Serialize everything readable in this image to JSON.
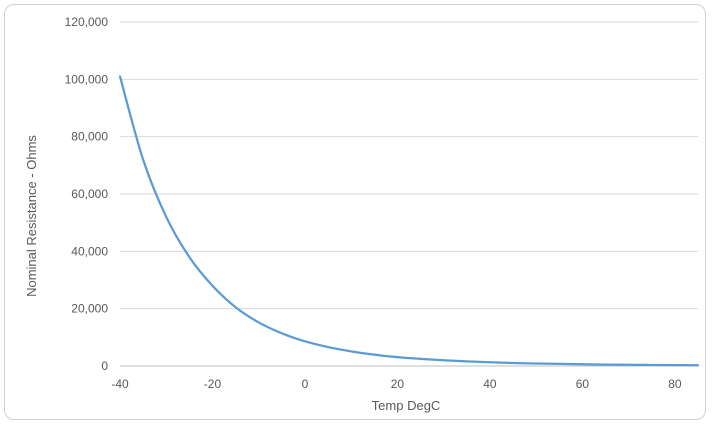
{
  "chart_data": {
    "type": "line",
    "title": "",
    "xlabel": "Temp DegC",
    "ylabel": "Nominal Resistance - Ohms",
    "xlim": [
      -40,
      85
    ],
    "ylim": [
      0,
      120000
    ],
    "x_ticks": [
      -40,
      -20,
      0,
      20,
      40,
      60,
      80
    ],
    "x_tick_labels": [
      "-40",
      "-20",
      "0",
      "20",
      "40",
      "60",
      "80"
    ],
    "y_ticks": [
      0,
      20000,
      40000,
      60000,
      80000,
      100000,
      120000
    ],
    "y_tick_labels": [
      "0",
      "20,000",
      "40,000",
      "60,000",
      "80,000",
      "100,000",
      "120,000"
    ],
    "grid": "horizontal",
    "legend": "none",
    "series": [
      {
        "color": "#5b9bd5",
        "x": [
          -40,
          -35,
          -30,
          -25,
          -20,
          -15,
          -10,
          -5,
          0,
          5,
          10,
          15,
          20,
          25,
          30,
          35,
          40,
          45,
          50,
          55,
          60,
          65,
          70,
          75,
          80,
          85
        ],
        "y": [
          101000,
          72000,
          52000,
          38000,
          28000,
          20500,
          15200,
          11400,
          8600,
          6600,
          5100,
          3950,
          3100,
          2500,
          2000,
          1600,
          1300,
          1050,
          870,
          720,
          600,
          500,
          420,
          360,
          300,
          260
        ]
      }
    ]
  }
}
